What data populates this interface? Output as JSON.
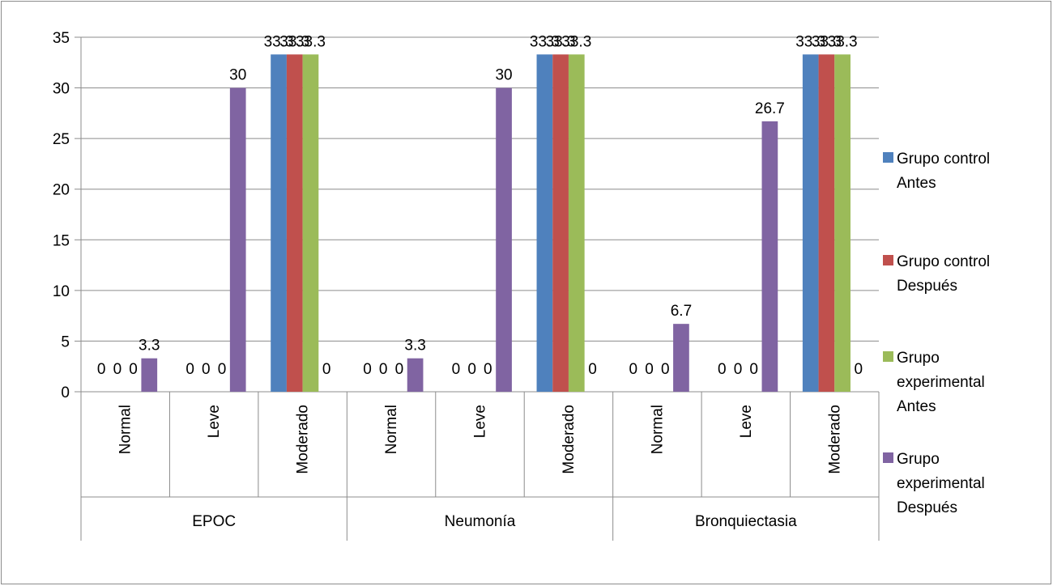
{
  "chart_data": {
    "type": "bar",
    "groups": [
      {
        "name": "EPOC",
        "categories": [
          "Normal",
          "Leve",
          "Moderado"
        ]
      },
      {
        "name": "Neumonía",
        "categories": [
          "Normal",
          "Leve",
          "Moderado"
        ]
      },
      {
        "name": "Bronquiectasia",
        "categories": [
          "Normal",
          "Leve",
          "Moderado"
        ]
      }
    ],
    "series": [
      {
        "name": "Grupo control Antes",
        "legend_lines": [
          "Grupo control",
          "Antes"
        ],
        "color": "#4F81BD",
        "values": [
          0,
          0,
          33.3,
          0,
          0,
          33.3,
          0,
          0,
          33.3
        ],
        "labels": [
          "0",
          "0",
          "33.3",
          "0",
          "0",
          "33.3",
          "0",
          "0",
          "33.3"
        ]
      },
      {
        "name": "Grupo control Después",
        "legend_lines": [
          "Grupo control",
          "Después"
        ],
        "color": "#C0504D",
        "values": [
          0,
          0,
          33.3,
          0,
          0,
          33.3,
          0,
          0,
          33.3
        ],
        "labels": [
          "0",
          "0",
          "33.3",
          "0",
          "0",
          "33.3",
          "0",
          "0",
          "33.3"
        ]
      },
      {
        "name": "Grupo experimental Antes",
        "legend_lines": [
          "Grupo",
          "experimental",
          "Antes"
        ],
        "color": "#9BBB59",
        "values": [
          0,
          0,
          33.3,
          0,
          0,
          33.3,
          0,
          0,
          33.3
        ],
        "labels": [
          "0",
          "0",
          "33.3",
          "0",
          "0",
          "33.3",
          "0",
          "0",
          "33.3"
        ]
      },
      {
        "name": "Grupo experimental Después",
        "legend_lines": [
          "Grupo",
          "experimental",
          "Después"
        ],
        "color": "#8064A2",
        "values": [
          3.3,
          30,
          0,
          3.3,
          30,
          0,
          6.7,
          26.7,
          0
        ],
        "labels": [
          "3.3",
          "30",
          "0",
          "3.3",
          "30",
          "0",
          "6.7",
          "26.7",
          "0"
        ]
      }
    ],
    "y_ticks": [
      "0",
      "5",
      "10",
      "15",
      "20",
      "25",
      "30",
      "35"
    ],
    "ylim": [
      0,
      35
    ],
    "grid": true,
    "legend_position": "right"
  }
}
